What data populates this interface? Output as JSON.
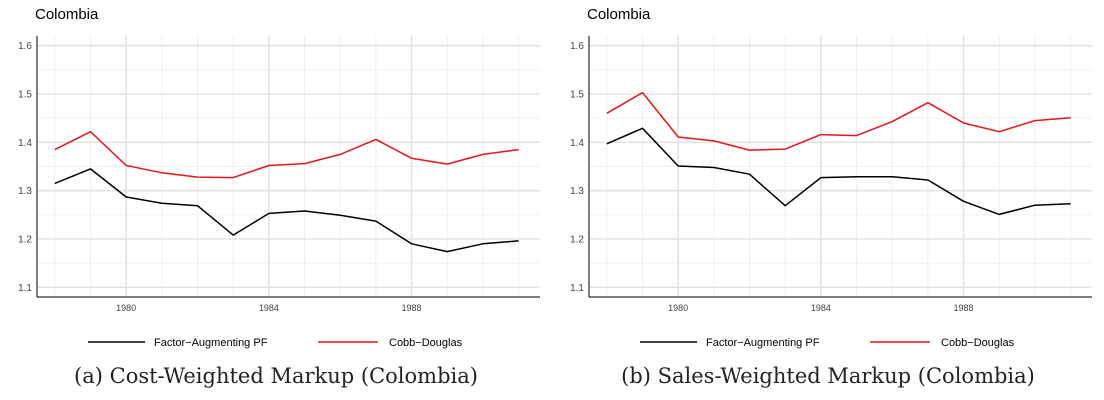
{
  "chart_data": [
    {
      "type": "line",
      "title": "Colombia",
      "caption": "(a) Cost-Weighted Markup (Colombia)",
      "x": [
        1978,
        1979,
        1980,
        1981,
        1982,
        1983,
        1984,
        1985,
        1986,
        1987,
        1988,
        1989,
        1990,
        1991
      ],
      "xticks": [
        1980,
        1984,
        1988
      ],
      "yticks": [
        1.1,
        1.2,
        1.3,
        1.4,
        1.5,
        1.6
      ],
      "xlim": [
        1977.5,
        1991.6
      ],
      "ylim": [
        1.08,
        1.62
      ],
      "grid": true,
      "legend_position": "bottom",
      "series": [
        {
          "name": "Factor−Augmenting PF",
          "color": "#000000",
          "values": [
            1.315,
            1.345,
            1.287,
            1.274,
            1.269,
            1.208,
            1.253,
            1.258,
            1.249,
            1.237,
            1.19,
            1.174,
            1.19,
            1.196
          ]
        },
        {
          "name": "Cobb−Douglas",
          "color": "#e8141c",
          "values": [
            1.385,
            1.422,
            1.352,
            1.337,
            1.328,
            1.327,
            1.352,
            1.356,
            1.375,
            1.406,
            1.367,
            1.355,
            1.375,
            1.385
          ]
        }
      ]
    },
    {
      "type": "line",
      "title": "Colombia",
      "caption": "(b) Sales-Weighted Markup (Colombia)",
      "x": [
        1978,
        1979,
        1980,
        1981,
        1982,
        1983,
        1984,
        1985,
        1986,
        1987,
        1988,
        1989,
        1990,
        1991
      ],
      "xticks": [
        1980,
        1984,
        1988
      ],
      "yticks": [
        1.1,
        1.2,
        1.3,
        1.4,
        1.5,
        1.6
      ],
      "xlim": [
        1977.5,
        1991.6
      ],
      "ylim": [
        1.08,
        1.62
      ],
      "grid": true,
      "legend_position": "bottom",
      "series": [
        {
          "name": "Factor−Augmenting PF",
          "color": "#000000",
          "values": [
            1.397,
            1.429,
            1.351,
            1.348,
            1.334,
            1.269,
            1.327,
            1.329,
            1.329,
            1.322,
            1.278,
            1.251,
            1.27,
            1.273
          ]
        },
        {
          "name": "Cobb−Douglas",
          "color": "#e8141c",
          "values": [
            1.46,
            1.503,
            1.411,
            1.403,
            1.384,
            1.386,
            1.416,
            1.414,
            1.443,
            1.482,
            1.44,
            1.422,
            1.445,
            1.451
          ]
        }
      ]
    }
  ]
}
